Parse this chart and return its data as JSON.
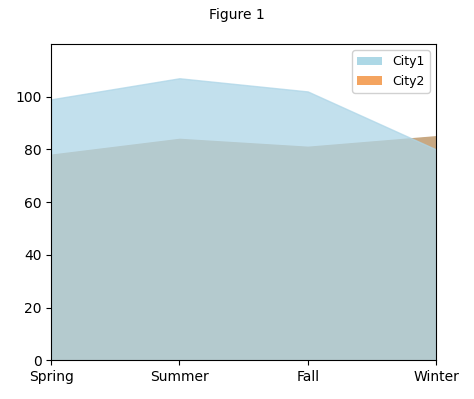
{
  "categories": [
    "Spring",
    "Summer",
    "Fall",
    "Winter"
  ],
  "city1": [
    99,
    107,
    102,
    80
  ],
  "city2": [
    78,
    84,
    81,
    85
  ],
  "city1_color": "#AED6E8",
  "city2_color": "#C8A882",
  "title": "Figure 1",
  "ylim": [
    0,
    120
  ],
  "yticks": [
    0,
    20,
    40,
    60,
    80,
    100
  ],
  "legend_labels": [
    "City1",
    "City2"
  ],
  "legend_city1_color": "#ADD8E6",
  "legend_city2_color": "#F4A460"
}
